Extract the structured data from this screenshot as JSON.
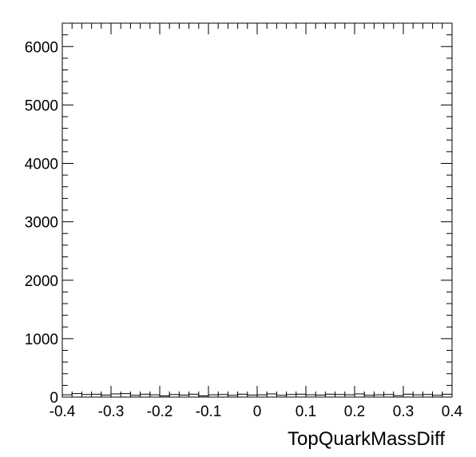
{
  "chart_data": {
    "type": "bar",
    "style": "histogram-step",
    "title": "",
    "xlabel": "TopQuarkMassDiff",
    "ylabel": "",
    "xlim": [
      -0.4,
      0.4
    ],
    "ylim": [
      0,
      6400
    ],
    "x_ticks": [
      -0.4,
      -0.3,
      -0.2,
      -0.1,
      0,
      0.1,
      0.2,
      0.3,
      0.4
    ],
    "x_tick_labels": [
      "-0.4",
      "-0.3",
      "-0.2",
      "-0.1",
      "0",
      "0.1",
      "0.2",
      "0.3",
      "0.4"
    ],
    "y_ticks": [
      0,
      1000,
      2000,
      3000,
      4000,
      5000,
      6000
    ],
    "y_tick_labels": [
      "0",
      "1000",
      "2000",
      "3000",
      "4000",
      "5000",
      "6000"
    ],
    "grid": false,
    "legend": "none",
    "line_color": "#000000",
    "bin_edges_range": [
      -0.4,
      0.4
    ],
    "bin_count": 40,
    "values": [
      40,
      60,
      45,
      50,
      35,
      55,
      60,
      30,
      50,
      40,
      20,
      45,
      35,
      50,
      20,
      40,
      45,
      30,
      50,
      35,
      40,
      55,
      30,
      45,
      50,
      40,
      35,
      50,
      45,
      40,
      55,
      30,
      40,
      45,
      25,
      50,
      40,
      45,
      30,
      50
    ]
  }
}
